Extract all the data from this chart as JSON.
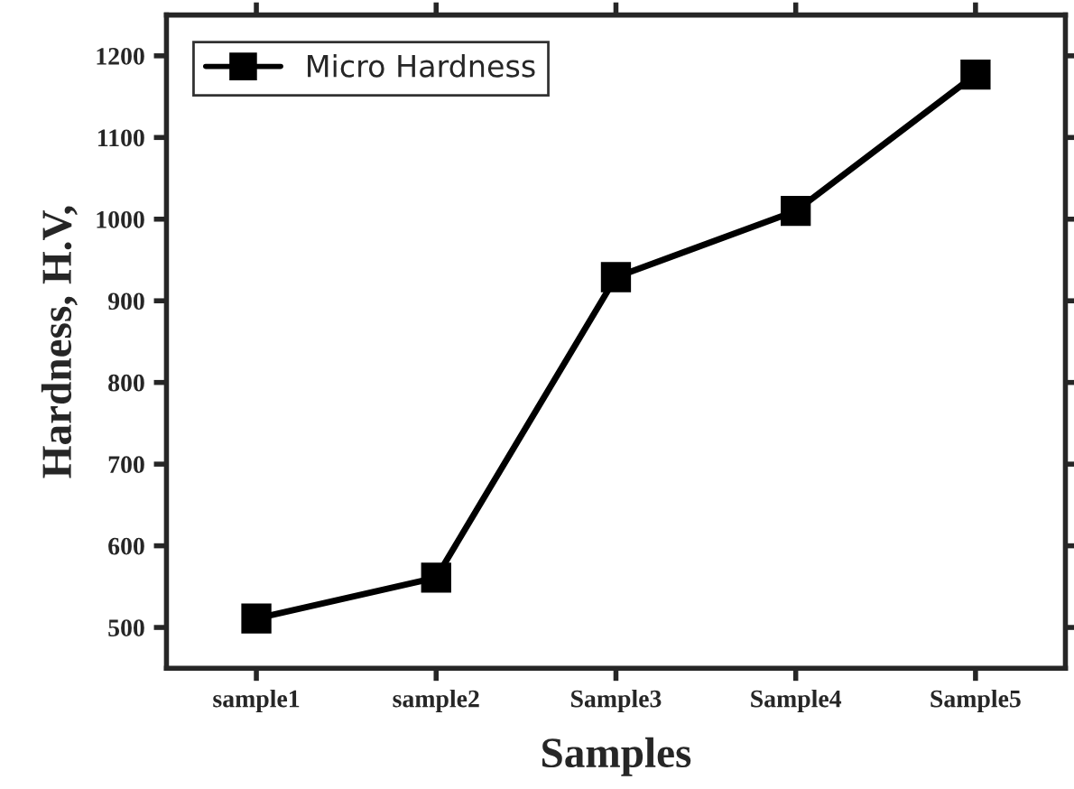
{
  "chart_data": {
    "type": "line",
    "xlabel": "Samples",
    "ylabel": "Hardness, H.V,",
    "categories": [
      "sample1",
      "sample2",
      "Sample3",
      "Sample4",
      "Sample5"
    ],
    "series": [
      {
        "name": "Micro Hardness",
        "color": "#000000",
        "values": [
          511,
          561,
          929,
          1010,
          1177
        ]
      }
    ],
    "ylim": [
      450,
      1250
    ],
    "yticks": [
      500,
      600,
      700,
      800,
      900,
      1000,
      1100,
      1200
    ],
    "marker": "square",
    "line_style": "solid",
    "legend": "top left",
    "grid": false
  }
}
